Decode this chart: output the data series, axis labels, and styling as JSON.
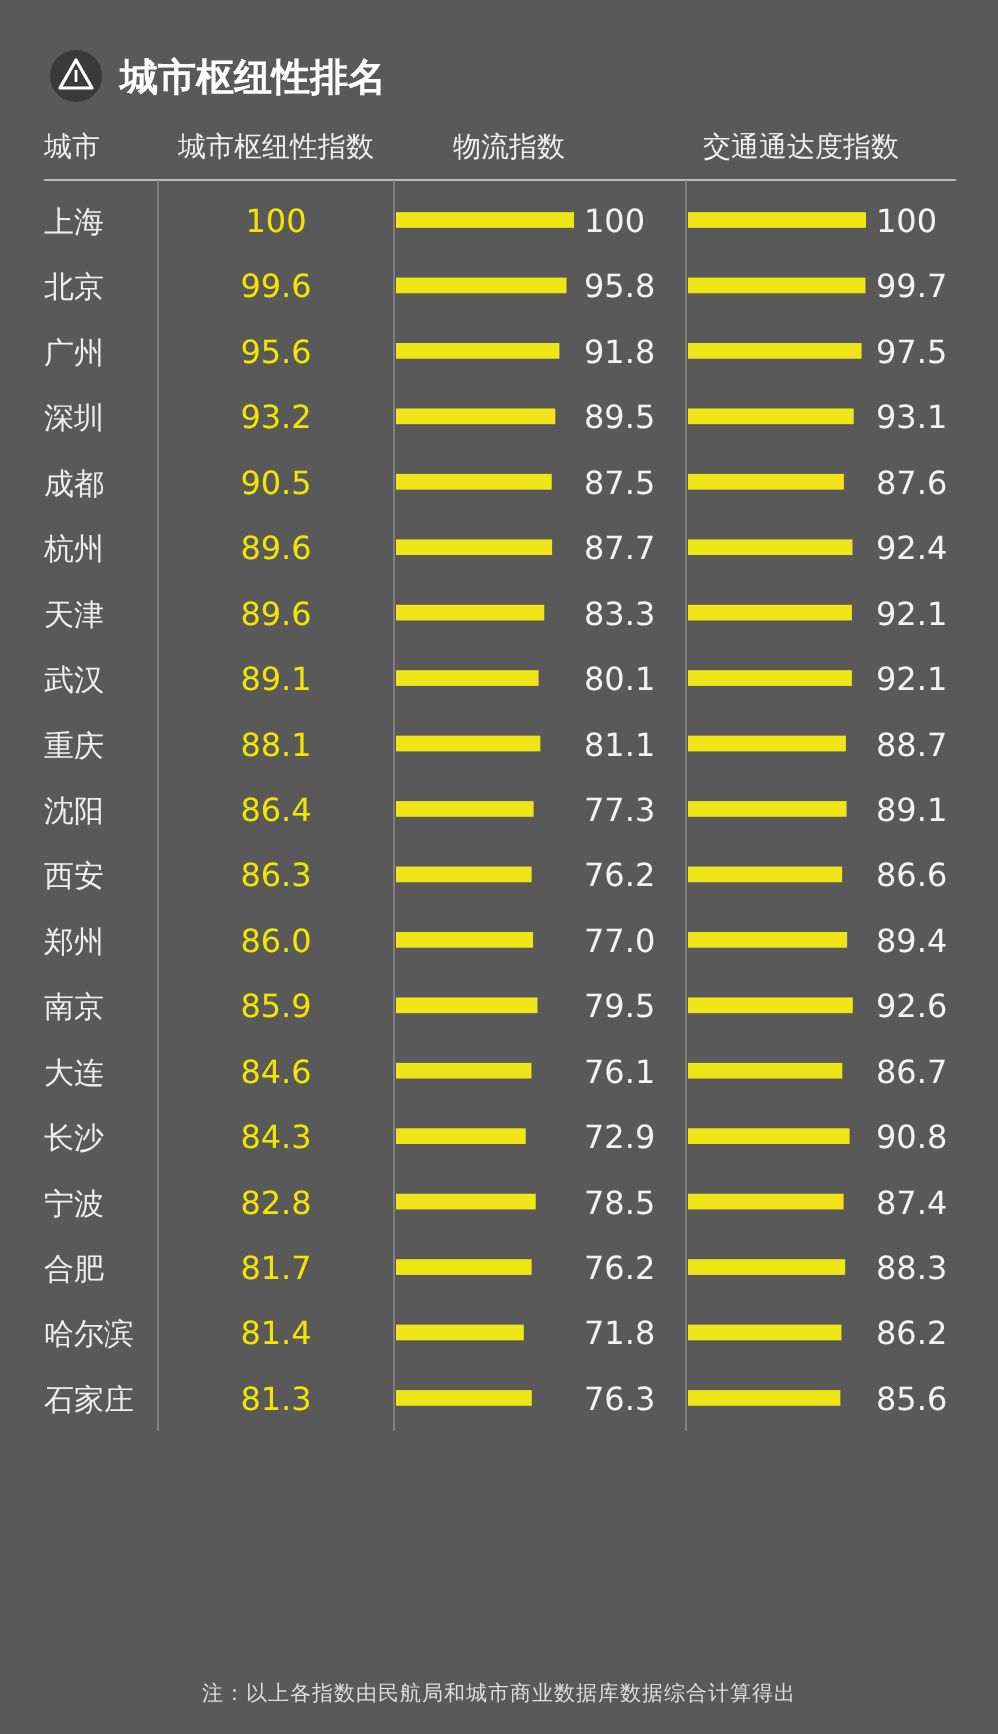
{
  "chart_data": [
    {
      "type": "other",
      "title": "城市枢纽性排名",
      "ylabel": "城市",
      "xlabel": "城市枢纽性指数",
      "color": "#f2e600",
      "categories": [
        "上海",
        "北京",
        "广州",
        "深圳",
        "成都",
        "杭州",
        "天津",
        "武汉",
        "重庆",
        "沈阳",
        "西安",
        "郑州",
        "南京",
        "大连",
        "长沙",
        "宁波",
        "合肥",
        "哈尔滨",
        "石家庄"
      ],
      "values": [
        100,
        99.6,
        95.6,
        93.2,
        90.5,
        89.6,
        89.6,
        89.1,
        88.1,
        86.4,
        86.3,
        86.0,
        85.9,
        84.6,
        84.3,
        82.8,
        81.7,
        81.4,
        81.3
      ],
      "value_labels": [
        "100",
        "99.6",
        "95.6",
        "93.2",
        "90.5",
        "89.6",
        "89.6",
        "89.1",
        "88.1",
        "86.4",
        "86.3",
        "86.0",
        "85.9",
        "84.6",
        "84.3",
        "82.8",
        "81.7",
        "81.4",
        "81.3"
      ],
      "annotations": [
        "注：以上各指数由民航局和城市商业数据库数据综合计算得出"
      ]
    },
    {
      "type": "bar",
      "orientation": "horizontal",
      "xlabel": "物流指数",
      "color": "#f0e516",
      "categories": [
        null,
        null,
        null,
        null,
        null,
        null,
        null,
        null,
        null,
        null,
        null,
        null,
        null,
        null,
        null,
        null,
        null,
        null,
        null
      ],
      "values": [
        100,
        95.8,
        91.8,
        89.5,
        87.5,
        87.7,
        83.3,
        80.1,
        81.1,
        77.3,
        76.2,
        77.0,
        79.5,
        76.1,
        72.9,
        78.5,
        76.2,
        71.8,
        76.3
      ],
      "value_labels": [
        "100",
        "95.8",
        "91.8",
        "89.5",
        "87.5",
        "87.7",
        "83.3",
        "80.1",
        "81.1",
        "77.3",
        "76.2",
        "77.0",
        "79.5",
        "76.1",
        "72.9",
        "78.5",
        "76.2",
        "71.8",
        "76.3"
      ]
    },
    {
      "type": "bar",
      "orientation": "horizontal",
      "xlabel": "交通通达度指数",
      "data_labels": true,
      "color": "#f0e516",
      "categories": [
        null,
        null,
        null,
        null,
        null,
        null,
        null,
        null,
        null,
        null,
        null,
        null,
        null,
        null,
        null,
        null,
        null,
        null,
        null
      ],
      "values": [
        100,
        99.7,
        97.5,
        93.1,
        87.6,
        92.4,
        92.1,
        92.1,
        88.7,
        89.1,
        86.6,
        89.4,
        92.6,
        86.7,
        90.8,
        87.4,
        88.3,
        86.2,
        85.6
      ]
    }
  ]
}
